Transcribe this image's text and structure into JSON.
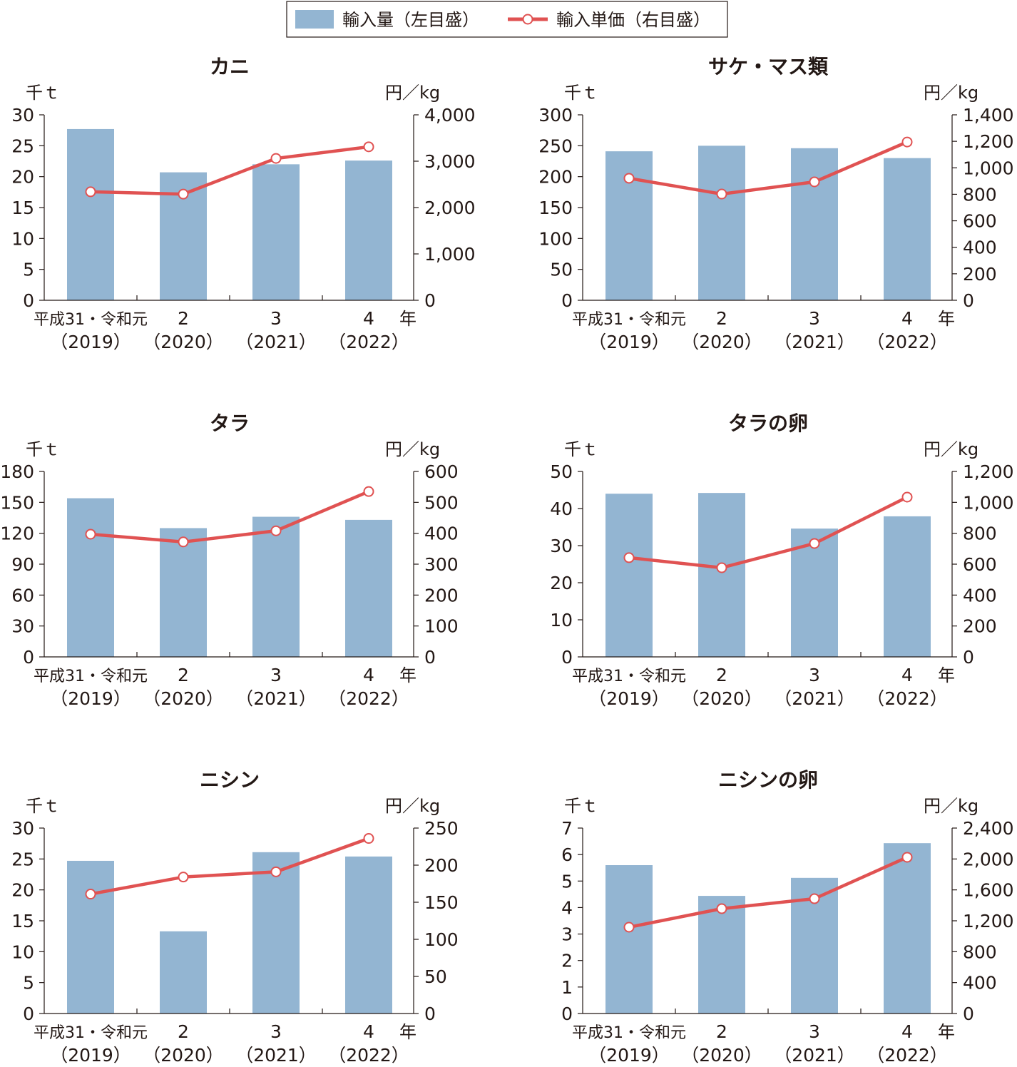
{
  "legend": {
    "bar_label": "輸入量（左目盛）",
    "line_label": "輸入単価（右目盛）",
    "placement": "top-center"
  },
  "colors": {
    "bar": "#93b5d2",
    "line": "#e05252",
    "marker_fill": "#ffffff",
    "axis": "#231815"
  },
  "chart_data": [
    {
      "type": "bar+line",
      "title": "カニ",
      "ylabel": "千ｔ",
      "y2label": "円／kg",
      "xunit": "年",
      "categories": [
        [
          "平成31・令和元",
          "（2019）"
        ],
        [
          "2",
          "（2020）"
        ],
        [
          "3",
          "（2021）"
        ],
        [
          "4",
          "（2022）"
        ]
      ],
      "ylim": [
        0,
        30
      ],
      "yticks": [
        0,
        5,
        10,
        15,
        20,
        25,
        30
      ],
      "y2lim": [
        0,
        4000
      ],
      "y2ticks": [
        0,
        1000,
        2000,
        3000,
        4000
      ],
      "series": [
        {
          "name": "輸入量（左目盛）",
          "axis": "left",
          "type": "bar",
          "values": [
            27.7,
            20.7,
            22.0,
            22.6
          ]
        },
        {
          "name": "輸入単価（右目盛）",
          "axis": "right",
          "type": "line",
          "values": [
            2340,
            2290,
            3060,
            3310
          ]
        }
      ]
    },
    {
      "type": "bar+line",
      "title": "サケ・マス類",
      "ylabel": "千ｔ",
      "y2label": "円／kg",
      "xunit": "年",
      "categories": [
        [
          "平成31・令和元",
          "（2019）"
        ],
        [
          "2",
          "（2020）"
        ],
        [
          "3",
          "（2021）"
        ],
        [
          "4",
          "（2022）"
        ]
      ],
      "ylim": [
        0,
        300
      ],
      "yticks": [
        0,
        50,
        100,
        150,
        200,
        250,
        300
      ],
      "y2lim": [
        0,
        1400
      ],
      "y2ticks": [
        0,
        200,
        400,
        600,
        800,
        1000,
        1200,
        1400
      ],
      "series": [
        {
          "name": "輸入量（左目盛）",
          "axis": "left",
          "type": "bar",
          "values": [
            241,
            250,
            246,
            230
          ]
        },
        {
          "name": "輸入単価（右目盛）",
          "axis": "right",
          "type": "line",
          "values": [
            921,
            802,
            894,
            1195
          ]
        }
      ]
    },
    {
      "type": "bar+line",
      "title": "タラ",
      "ylabel": "千ｔ",
      "y2label": "円／kg",
      "xunit": "年",
      "categories": [
        [
          "平成31・令和元",
          "（2019）"
        ],
        [
          "2",
          "（2020）"
        ],
        [
          "3",
          "（2021）"
        ],
        [
          "4",
          "（2022）"
        ]
      ],
      "ylim": [
        0,
        180
      ],
      "yticks": [
        0,
        30,
        60,
        90,
        120,
        150,
        180
      ],
      "y2lim": [
        0,
        600
      ],
      "y2ticks": [
        0,
        100,
        200,
        300,
        400,
        500,
        600
      ],
      "series": [
        {
          "name": "輸入量（左目盛）",
          "axis": "left",
          "type": "bar",
          "values": [
            154,
            125,
            136,
            133
          ]
        },
        {
          "name": "輸入単価（右目盛）",
          "axis": "right",
          "type": "line",
          "values": [
            397,
            372,
            408,
            535
          ]
        }
      ]
    },
    {
      "type": "bar+line",
      "title": "タラの卵",
      "ylabel": "千ｔ",
      "y2label": "円／kg",
      "xunit": "年",
      "categories": [
        [
          "平成31・令和元",
          "（2019）"
        ],
        [
          "2",
          "（2020）"
        ],
        [
          "3",
          "（2021）"
        ],
        [
          "4",
          "（2022）"
        ]
      ],
      "ylim": [
        0,
        50
      ],
      "yticks": [
        0,
        10,
        20,
        30,
        40,
        50
      ],
      "y2lim": [
        0,
        1200
      ],
      "y2ticks": [
        0,
        200,
        400,
        600,
        800,
        1000,
        1200
      ],
      "series": [
        {
          "name": "輸入量（左目盛）",
          "axis": "left",
          "type": "bar",
          "values": [
            44.0,
            44.2,
            34.6,
            37.9
          ]
        },
        {
          "name": "輸入単価（右目盛）",
          "axis": "right",
          "type": "line",
          "values": [
            642,
            577,
            734,
            1034
          ]
        }
      ]
    },
    {
      "type": "bar+line",
      "title": "ニシン",
      "ylabel": "千ｔ",
      "y2label": "円／kg",
      "xunit": "年",
      "categories": [
        [
          "平成31・令和元",
          "（2019）"
        ],
        [
          "2",
          "（2020）"
        ],
        [
          "3",
          "（2021）"
        ],
        [
          "4",
          "（2022）"
        ]
      ],
      "ylim": [
        0,
        30
      ],
      "yticks": [
        0,
        5,
        10,
        15,
        20,
        25,
        30
      ],
      "y2lim": [
        0,
        250
      ],
      "y2ticks": [
        0,
        50,
        100,
        150,
        200,
        250
      ],
      "series": [
        {
          "name": "輸入量（左目盛）",
          "axis": "left",
          "type": "bar",
          "values": [
            24.7,
            13.3,
            26.1,
            25.4
          ]
        },
        {
          "name": "輸入単価（右目盛）",
          "axis": "right",
          "type": "line",
          "values": [
            161,
            184,
            191,
            236
          ]
        }
      ]
    },
    {
      "type": "bar+line",
      "title": "ニシンの卵",
      "ylabel": "千ｔ",
      "y2label": "円／kg",
      "xunit": "年",
      "categories": [
        [
          "平成31・令和元",
          "（2019）"
        ],
        [
          "2",
          "（2020）"
        ],
        [
          "3",
          "（2021）"
        ],
        [
          "4",
          "（2022）"
        ]
      ],
      "ylim": [
        0,
        7
      ],
      "yticks": [
        0,
        1,
        2,
        3,
        4,
        5,
        6,
        7
      ],
      "y2lim": [
        0,
        2400
      ],
      "y2ticks": [
        0,
        400,
        800,
        1200,
        1600,
        2000,
        2400
      ],
      "series": [
        {
          "name": "輸入量（左目盛）",
          "axis": "left",
          "type": "bar",
          "values": [
            5.6,
            4.44,
            5.12,
            6.43
          ]
        },
        {
          "name": "輸入単価（右目盛）",
          "axis": "right",
          "type": "line",
          "values": [
            1117,
            1357,
            1486,
            2022
          ]
        }
      ]
    }
  ]
}
